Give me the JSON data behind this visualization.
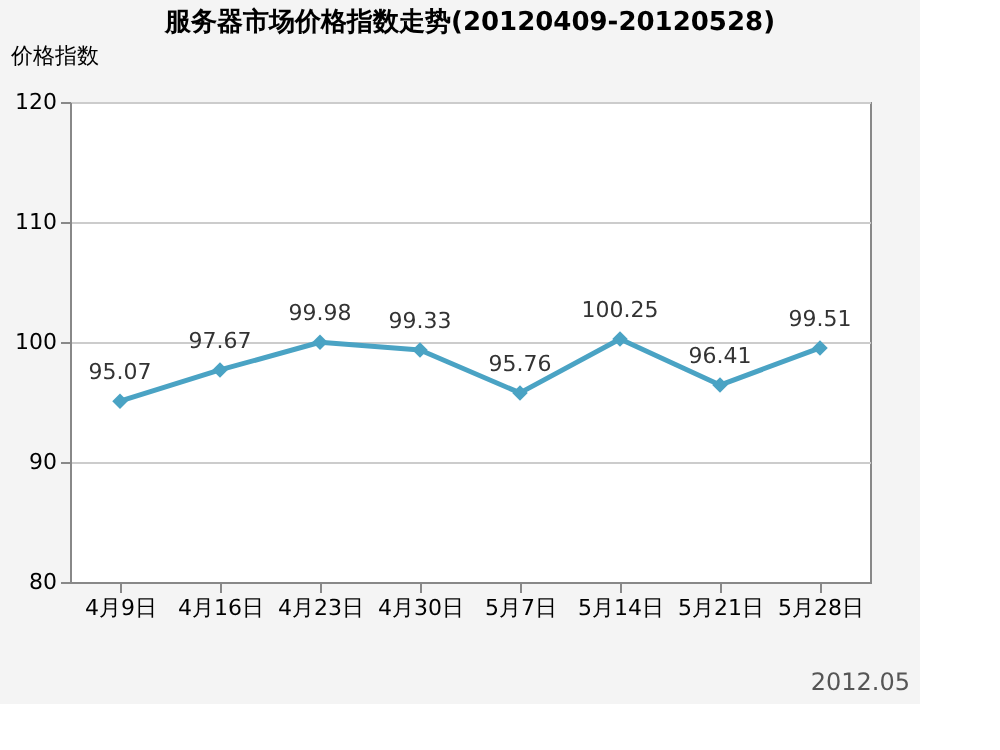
{
  "chart_data": {
    "type": "line",
    "title": "服务器市场价格指数走势(20120409-20120528)",
    "ylabel": "价格指数",
    "categories": [
      "4月9日",
      "4月16日",
      "4月23日",
      "4月30日",
      "5月7日",
      "5月14日",
      "5月21日",
      "5月28日"
    ],
    "series": [
      {
        "color": "#4aa3c4",
        "values": [
          95.07,
          97.67,
          99.98,
          99.33,
          95.76,
          100.25,
          96.41,
          99.51
        ]
      }
    ],
    "ylim": [
      80,
      120
    ],
    "yticks": [
      80,
      90,
      100,
      110,
      120
    ],
    "grid": "y",
    "marker": "diamond",
    "line_style": "solid",
    "data_labels": true,
    "annotations": [
      "2012.05"
    ]
  }
}
